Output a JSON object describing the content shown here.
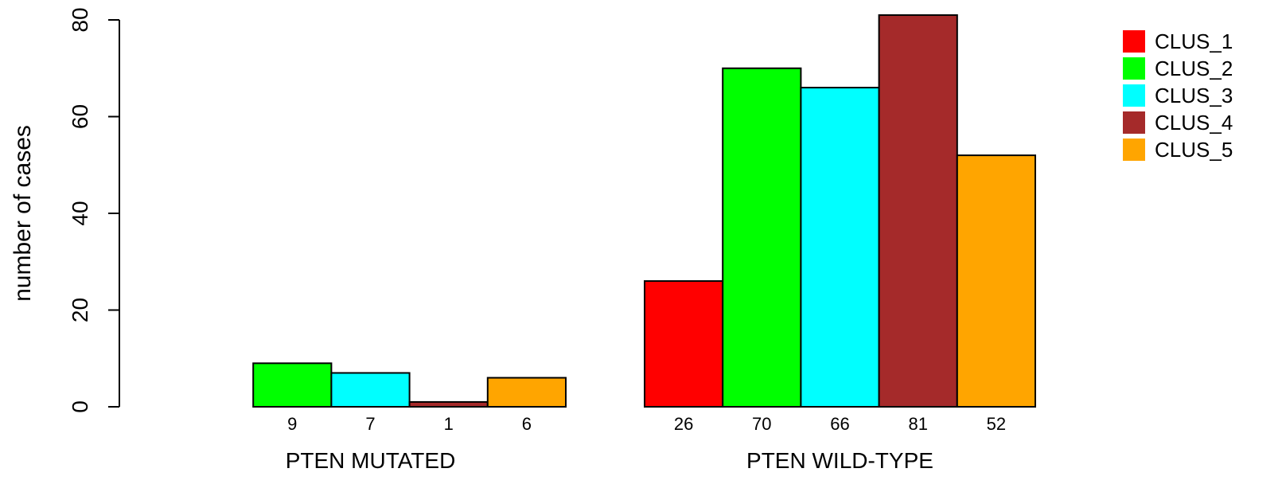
{
  "chart_data": {
    "type": "bar",
    "layout": "grouped",
    "groups": [
      "PTEN MUTATED",
      "PTEN WILD-TYPE"
    ],
    "series": [
      {
        "name": "CLUS_1",
        "color": "#FF0000",
        "values": [
          0,
          26
        ]
      },
      {
        "name": "CLUS_2",
        "color": "#00FF00",
        "values": [
          9,
          70
        ]
      },
      {
        "name": "CLUS_3",
        "color": "#00FFFF",
        "values": [
          7,
          66
        ]
      },
      {
        "name": "CLUS_4",
        "color": "#A52A2A",
        "values": [
          1,
          81
        ]
      },
      {
        "name": "CLUS_5",
        "color": "#FFA500",
        "values": [
          6,
          52
        ]
      }
    ],
    "bar_labels": [
      [
        "",
        "9",
        "7",
        "1",
        "6"
      ],
      [
        "26",
        "70",
        "66",
        "81",
        "52"
      ]
    ],
    "ylabel": "number of cases",
    "ylim": [
      0,
      80
    ],
    "yticks": [
      0,
      20,
      40,
      60,
      80
    ],
    "grid": false,
    "legend_position": "top-right"
  }
}
